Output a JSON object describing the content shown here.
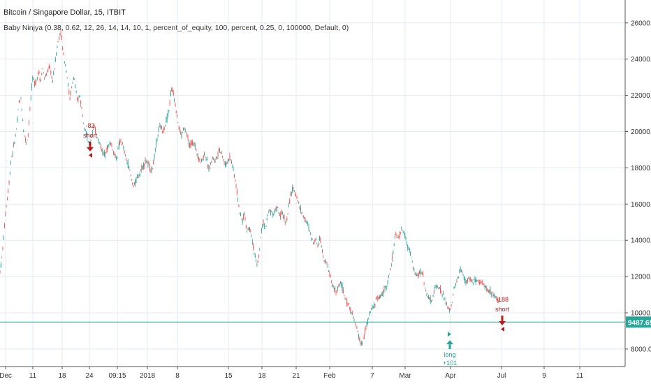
{
  "chart_data": {
    "type": "candlestick",
    "title": "Bitcoin / Singapore Dollar, 15, ITBIT",
    "indicator": "Baby Ninjya (0.38, 0.62, 12, 26, 14, 14, 10, 1, percent_of_equity, 100, percent, 0.25, 0, 100000, Default, 0)",
    "price_label": "9487.65",
    "current_price": 9487.65,
    "ylim": [
      7300,
      27300
    ],
    "y_ticks": [
      "8000.00",
      "10000.00",
      "12000.00",
      "14000.00",
      "16000.00",
      "18000.00",
      "20000.00",
      "22000.00",
      "24000.00",
      "26000.00"
    ],
    "x_ticks": [
      "Dec",
      "11",
      "18",
      "24",
      "09:15",
      "2018",
      "8",
      "15",
      "18",
      "21",
      "Feb",
      "7",
      "Mar",
      "Apr",
      "Jul",
      "9",
      "11"
    ],
    "grid": true,
    "colors": {
      "up": "#26a69a",
      "down": "#ef5350",
      "grid": "#e3eaf0",
      "price_line": "#26a69a",
      "long": "#26a69a",
      "short": "#b71c1c"
    },
    "price_path": [
      [
        0,
        12300
      ],
      [
        2,
        12800
      ],
      [
        5,
        14000
      ],
      [
        8,
        15600
      ],
      [
        11,
        16500
      ],
      [
        14,
        17600
      ],
      [
        16,
        18500
      ],
      [
        19,
        19000
      ],
      [
        21,
        19500
      ],
      [
        24,
        20300
      ],
      [
        27,
        21600
      ],
      [
        30,
        21800
      ],
      [
        34,
        20000
      ],
      [
        37,
        19400
      ],
      [
        40,
        19700
      ],
      [
        44,
        21800
      ],
      [
        47,
        23000
      ],
      [
        50,
        22600
      ],
      [
        53,
        23000
      ],
      [
        56,
        23300
      ],
      [
        58,
        22700
      ],
      [
        61,
        23500
      ],
      [
        64,
        22900
      ],
      [
        67,
        23200
      ],
      [
        70,
        23600
      ],
      [
        73,
        23300
      ],
      [
        75,
        22700
      ],
      [
        78,
        23500
      ],
      [
        81,
        24500
      ],
      [
        84,
        25100
      ],
      [
        87,
        25600
      ],
      [
        89,
        24800
      ],
      [
        92,
        24000
      ],
      [
        95,
        23400
      ],
      [
        98,
        22400
      ],
      [
        100,
        21800
      ],
      [
        103,
        22500
      ],
      [
        106,
        23100
      ],
      [
        108,
        22400
      ],
      [
        111,
        21600
      ],
      [
        114,
        22100
      ],
      [
        117,
        21300
      ],
      [
        120,
        20500
      ],
      [
        123,
        20000
      ],
      [
        126,
        19500
      ],
      [
        128,
        19100
      ],
      [
        131,
        19700
      ],
      [
        134,
        20300
      ],
      [
        137,
        20000
      ],
      [
        140,
        19600
      ],
      [
        143,
        19300
      ],
      [
        146,
        19000
      ],
      [
        149,
        18700
      ],
      [
        152,
        19000
      ],
      [
        155,
        19200
      ],
      [
        158,
        19400
      ],
      [
        161,
        19100
      ],
      [
        164,
        18700
      ],
      [
        167,
        18500
      ],
      [
        170,
        19200
      ],
      [
        173,
        19500
      ],
      [
        176,
        19200
      ],
      [
        179,
        18700
      ],
      [
        182,
        18300
      ],
      [
        185,
        18000
      ],
      [
        188,
        17400
      ],
      [
        191,
        17000
      ],
      [
        194,
        17200
      ],
      [
        197,
        17500
      ],
      [
        200,
        17700
      ],
      [
        203,
        18000
      ],
      [
        206,
        18200
      ],
      [
        209,
        18400
      ],
      [
        212,
        18200
      ],
      [
        215,
        18000
      ],
      [
        218,
        17900
      ],
      [
        221,
        18600
      ],
      [
        224,
        19400
      ],
      [
        227,
        20000
      ],
      [
        230,
        20300
      ],
      [
        233,
        20000
      ],
      [
        236,
        20300
      ],
      [
        239,
        20800
      ],
      [
        242,
        21200
      ],
      [
        245,
        22300
      ],
      [
        248,
        22200
      ],
      [
        251,
        21500
      ],
      [
        254,
        20700
      ],
      [
        257,
        20100
      ],
      [
        260,
        19800
      ],
      [
        263,
        20200
      ],
      [
        266,
        20000
      ],
      [
        269,
        19600
      ],
      [
        272,
        19200
      ],
      [
        275,
        19400
      ],
      [
        278,
        19300
      ],
      [
        281,
        19000
      ],
      [
        284,
        18600
      ],
      [
        287,
        18300
      ],
      [
        290,
        18500
      ],
      [
        293,
        18800
      ],
      [
        296,
        18400
      ],
      [
        299,
        17900
      ],
      [
        302,
        18300
      ],
      [
        305,
        18600
      ],
      [
        308,
        18400
      ],
      [
        311,
        18700
      ],
      [
        314,
        19000
      ],
      [
        317,
        18900
      ],
      [
        320,
        18400
      ],
      [
        323,
        18100
      ],
      [
        326,
        18400
      ],
      [
        329,
        18600
      ],
      [
        332,
        18300
      ],
      [
        335,
        17700
      ],
      [
        338,
        17000
      ],
      [
        341,
        16200
      ],
      [
        344,
        15300
      ],
      [
        347,
        15100
      ],
      [
        350,
        15500
      ],
      [
        353,
        14500
      ],
      [
        356,
        14700
      ],
      [
        359,
        14600
      ],
      [
        362,
        13800
      ],
      [
        365,
        13100
      ],
      [
        368,
        12600
      ],
      [
        371,
        13200
      ],
      [
        374,
        14500
      ],
      [
        377,
        15000
      ],
      [
        380,
        14600
      ],
      [
        383,
        15300
      ],
      [
        386,
        15700
      ],
      [
        389,
        15600
      ],
      [
        392,
        15400
      ],
      [
        395,
        15800
      ],
      [
        398,
        15700
      ],
      [
        401,
        15300
      ],
      [
        404,
        15500
      ],
      [
        407,
        15200
      ],
      [
        410,
        15000
      ],
      [
        413,
        15700
      ],
      [
        416,
        16500
      ],
      [
        419,
        16800
      ],
      [
        422,
        16700
      ],
      [
        425,
        16400
      ],
      [
        428,
        16000
      ],
      [
        431,
        15600
      ],
      [
        434,
        15400
      ],
      [
        437,
        15100
      ],
      [
        440,
        14900
      ],
      [
        443,
        14600
      ],
      [
        446,
        14100
      ],
      [
        449,
        13900
      ],
      [
        452,
        14100
      ],
      [
        455,
        13700
      ],
      [
        458,
        14200
      ],
      [
        461,
        13500
      ],
      [
        464,
        13000
      ],
      [
        467,
        12800
      ],
      [
        470,
        12400
      ],
      [
        473,
        12000
      ],
      [
        476,
        11500
      ],
      [
        479,
        11300
      ],
      [
        482,
        11100
      ],
      [
        485,
        11500
      ],
      [
        488,
        11700
      ],
      [
        491,
        11200
      ],
      [
        494,
        10800
      ],
      [
        497,
        10500
      ],
      [
        500,
        10400
      ],
      [
        503,
        10000
      ],
      [
        506,
        9700
      ],
      [
        509,
        9300
      ],
      [
        512,
        9000
      ],
      [
        515,
        8500
      ],
      [
        518,
        8200
      ],
      [
        521,
        8700
      ],
      [
        524,
        9200
      ],
      [
        527,
        9600
      ],
      [
        530,
        10000
      ],
      [
        533,
        10300
      ],
      [
        536,
        10400
      ],
      [
        539,
        10800
      ],
      [
        542,
        10800
      ],
      [
        545,
        10900
      ],
      [
        548,
        11100
      ],
      [
        551,
        11400
      ],
      [
        554,
        11500
      ],
      [
        557,
        12000
      ],
      [
        560,
        12600
      ],
      [
        563,
        13400
      ],
      [
        566,
        14400
      ],
      [
        569,
        14100
      ],
      [
        572,
        14200
      ],
      [
        575,
        14700
      ],
      [
        578,
        14400
      ],
      [
        581,
        14100
      ],
      [
        584,
        13600
      ],
      [
        587,
        13400
      ],
      [
        590,
        12800
      ],
      [
        593,
        12300
      ],
      [
        596,
        12000
      ],
      [
        599,
        12100
      ],
      [
        602,
        12300
      ],
      [
        605,
        12200
      ],
      [
        608,
        11500
      ],
      [
        611,
        11000
      ],
      [
        614,
        10800
      ],
      [
        617,
        10600
      ],
      [
        620,
        10900
      ],
      [
        623,
        11400
      ],
      [
        626,
        11500
      ],
      [
        629,
        11400
      ],
      [
        632,
        11100
      ],
      [
        635,
        10900
      ],
      [
        638,
        10600
      ],
      [
        641,
        10300
      ],
      [
        644,
        10100
      ],
      [
        647,
        10500
      ],
      [
        650,
        11300
      ],
      [
        653,
        11600
      ],
      [
        656,
        12000
      ],
      [
        659,
        12400
      ],
      [
        662,
        12200
      ],
      [
        665,
        11800
      ],
      [
        668,
        11700
      ],
      [
        671,
        11900
      ],
      [
        674,
        11800
      ],
      [
        677,
        11700
      ],
      [
        680,
        11800
      ],
      [
        683,
        11700
      ],
      [
        686,
        11600
      ],
      [
        689,
        11700
      ],
      [
        692,
        11600
      ],
      [
        695,
        11500
      ],
      [
        698,
        11200
      ],
      [
        701,
        11200
      ],
      [
        704,
        11100
      ],
      [
        707,
        11000
      ],
      [
        710,
        10900
      ],
      [
        713,
        10700
      ],
      [
        716,
        10600
      ]
    ],
    "signals": [
      {
        "type": "short",
        "label": "short",
        "value": "-82",
        "price": 18600
      },
      {
        "type": "long",
        "label": "long",
        "value": "+101",
        "price": 8800
      },
      {
        "type": "short",
        "label": "short",
        "value": "-188",
        "price": 9000
      }
    ]
  }
}
